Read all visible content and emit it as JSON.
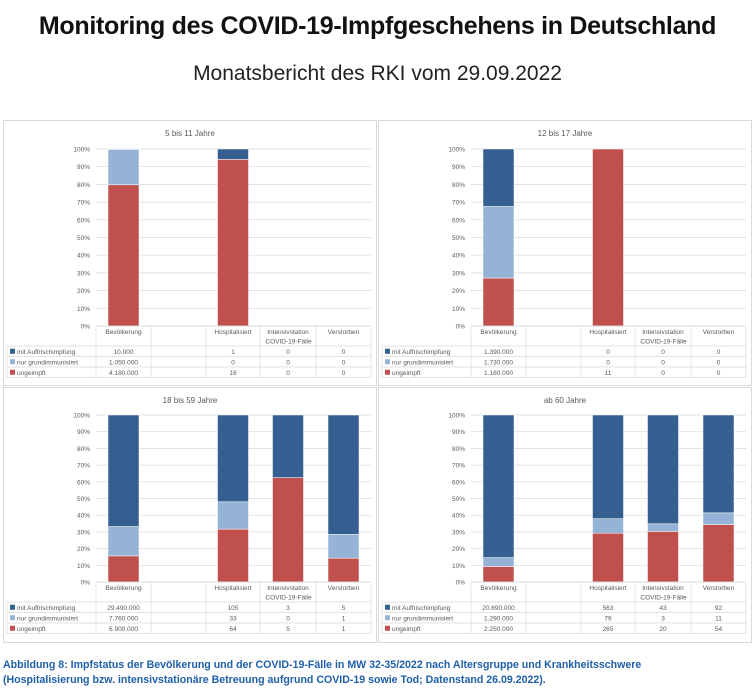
{
  "header": {
    "title": "Monitoring des COVID-19-Impfgeschehens in Deutschland",
    "subtitle": "Monatsbericht des RKI vom 29.09.2022"
  },
  "caption": {
    "line1": "Abbildung 8: Impfstatus der Bevölkerung und der COVID-19-Fälle in MW 32-35/2022 nach Altersgruppe und Krankheitsschwere",
    "line2": "(Hospitalisierung bzw. intensivstationäre Betreuung aufgrund COVID-19 sowie Tod; Datenstand 26.09.2022)."
  },
  "colors": {
    "mit_auffrischimpfung": "#365f91",
    "nur_grundimmunisiert": "#95b3d7",
    "ungeimpft": "#c0504d"
  },
  "chart_data": [
    {
      "type": "bar",
      "stacked": "percent",
      "title": "5 bis 11 Jahre",
      "categories": [
        "Bevölkerung",
        "",
        "Hospitalisiert",
        "Intensivstation",
        "Verstorben"
      ],
      "group_label": "COVID-19-Fälle",
      "yticks": [
        "0%",
        "10%",
        "20%",
        "30%",
        "40%",
        "50%",
        "60%",
        "70%",
        "80%",
        "90%",
        "100%"
      ],
      "ylim": [
        0,
        100
      ],
      "series": [
        {
          "name": "ungeimpft",
          "key": "ungeimpft",
          "values": [
            "4.180.000",
            "",
            "16",
            "0",
            "0"
          ],
          "numeric": [
            4180000,
            0,
            16,
            0,
            0
          ]
        },
        {
          "name": "nur grundimmunisiert",
          "key": "nur_grundimmunisiert",
          "values": [
            "1.050.000",
            "",
            "0",
            "0",
            "0"
          ],
          "numeric": [
            1050000,
            0,
            0,
            0,
            0
          ]
        },
        {
          "name": "mit Auffrischimpfung",
          "key": "mit_auffrischimpfung",
          "values": [
            "10.000",
            "",
            "1",
            "0",
            "0"
          ],
          "numeric": [
            10000,
            0,
            1,
            0,
            0
          ]
        }
      ]
    },
    {
      "type": "bar",
      "stacked": "percent",
      "title": "12 bis 17 Jahre",
      "categories": [
        "Bevölkerung",
        "",
        "Hospitalisiert",
        "Intensivstation",
        "Verstorben"
      ],
      "group_label": "COVID-19-Fälle",
      "yticks": [
        "0%",
        "10%",
        "20%",
        "30%",
        "40%",
        "50%",
        "60%",
        "70%",
        "80%",
        "90%",
        "100%"
      ],
      "ylim": [
        0,
        100
      ],
      "series": [
        {
          "name": "ungeimpft",
          "key": "ungeimpft",
          "values": [
            "1.160.000",
            "",
            "11",
            "0",
            "0"
          ],
          "numeric": [
            1160000,
            0,
            11,
            0,
            0
          ]
        },
        {
          "name": "nur grundimmunisiert",
          "key": "nur_grundimmunisiert",
          "values": [
            "1.730.000",
            "",
            "0",
            "0",
            "0"
          ],
          "numeric": [
            1730000,
            0,
            0,
            0,
            0
          ]
        },
        {
          "name": "mit Auffrischimpfung",
          "key": "mit_auffrischimpfung",
          "values": [
            "1.390.000",
            "",
            "0",
            "0",
            "0"
          ],
          "numeric": [
            1390000,
            0,
            0,
            0,
            0
          ]
        }
      ]
    },
    {
      "type": "bar",
      "stacked": "percent",
      "title": "18 bis 59 Jahre",
      "categories": [
        "Bevölkerung",
        "",
        "Hospitalisiert",
        "Intensivstation",
        "Verstorben"
      ],
      "group_label": "COVID-19-Fälle",
      "yticks": [
        "0%",
        "10%",
        "20%",
        "30%",
        "40%",
        "50%",
        "60%",
        "70%",
        "80%",
        "90%",
        "100%"
      ],
      "ylim": [
        0,
        100
      ],
      "series": [
        {
          "name": "ungeimpft",
          "key": "ungeimpft",
          "values": [
            "6.900.000",
            "",
            "64",
            "5",
            "1"
          ],
          "numeric": [
            6900000,
            0,
            64,
            5,
            1
          ]
        },
        {
          "name": "nur grundimmunisiert",
          "key": "nur_grundimmunisiert",
          "values": [
            "7.760.000",
            "",
            "33",
            "0",
            "1"
          ],
          "numeric": [
            7760000,
            0,
            33,
            0,
            1
          ]
        },
        {
          "name": "mit Auffrischimpfung",
          "key": "mit_auffrischimpfung",
          "values": [
            "29.490.000",
            "",
            "105",
            "3",
            "5"
          ],
          "numeric": [
            29490000,
            0,
            105,
            3,
            5
          ]
        }
      ]
    },
    {
      "type": "bar",
      "stacked": "percent",
      "title": "ab 60 Jahre",
      "categories": [
        "Bevölkerung",
        "",
        "Hospitalisiert",
        "Intensivstation",
        "Verstorben"
      ],
      "group_label": "COVID-19-Fälle",
      "yticks": [
        "0%",
        "10%",
        "20%",
        "30%",
        "40%",
        "50%",
        "60%",
        "70%",
        "80%",
        "90%",
        "100%"
      ],
      "ylim": [
        0,
        100
      ],
      "series": [
        {
          "name": "ungeimpft",
          "key": "ungeimpft",
          "values": [
            "2.250.000",
            "",
            "265",
            "20",
            "54"
          ],
          "numeric": [
            2250000,
            0,
            265,
            20,
            54
          ]
        },
        {
          "name": "nur grundimmunisiert",
          "key": "nur_grundimmunisiert",
          "values": [
            "1.290.000",
            "",
            "79",
            "3",
            "11"
          ],
          "numeric": [
            1290000,
            0,
            79,
            3,
            11
          ]
        },
        {
          "name": "mit Auffrischimpfung",
          "key": "mit_auffrischimpfung",
          "values": [
            "20.690.000",
            "",
            "563",
            "43",
            "92"
          ],
          "numeric": [
            20690000,
            0,
            563,
            43,
            92
          ]
        }
      ]
    }
  ]
}
